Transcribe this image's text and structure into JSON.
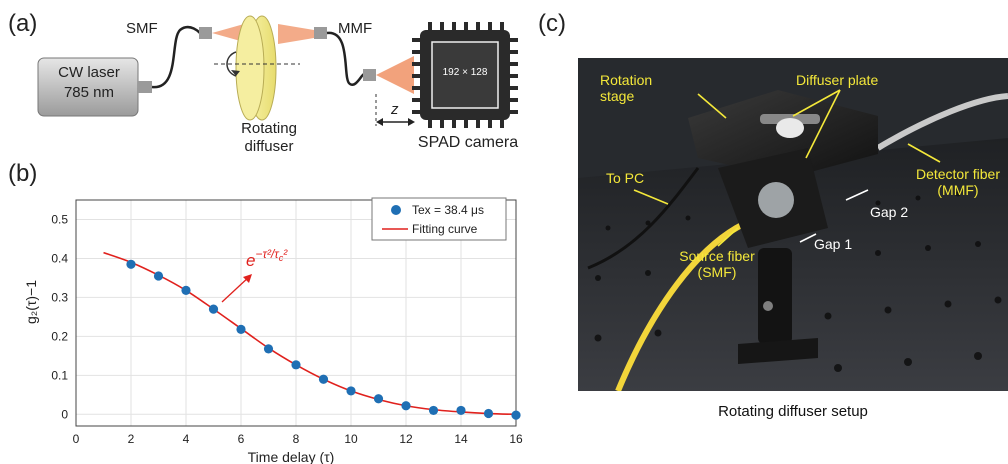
{
  "panel_labels": {
    "a": "(a)",
    "b": "(b)",
    "c": "(c)"
  },
  "schematic": {
    "laser_line1": "CW laser",
    "laser_line2": "785 nm",
    "smf": "SMF",
    "mmf": "MMF",
    "diffuser_line1": "Rotating",
    "diffuser_line2": "diffuser",
    "z_label": "z",
    "sensor_label": "192 × 128",
    "camera_label": "SPAD camera"
  },
  "chart_data": {
    "type": "scatter",
    "xlabel": "Time delay (τ)",
    "ylabel": "g₂(τ)−1",
    "xlim": [
      0,
      16
    ],
    "ylim": [
      -0.03,
      0.55
    ],
    "xticks": [
      0,
      2,
      4,
      6,
      8,
      10,
      12,
      14,
      16
    ],
    "yticks": [
      0,
      0.1,
      0.2,
      0.3,
      0.4,
      0.5
    ],
    "grid": true,
    "legend_position": "top-right",
    "series": [
      {
        "name": "Tex = 38.4 μs",
        "kind": "markers",
        "color": "#1f6fb4",
        "x": [
          2,
          3,
          4,
          5,
          6,
          7,
          8,
          9,
          10,
          11,
          12,
          13,
          14,
          15,
          16
        ],
        "y": [
          0.385,
          0.355,
          0.318,
          0.27,
          0.218,
          0.168,
          0.127,
          0.09,
          0.06,
          0.04,
          0.022,
          0.01,
          0.01,
          0.002,
          -0.002
        ]
      },
      {
        "name": "Fitting curve",
        "kind": "line",
        "color": "#e0211d",
        "x": [
          1,
          2,
          3,
          4,
          5,
          6,
          7,
          8,
          9,
          10,
          11,
          12,
          13,
          14,
          15,
          16
        ],
        "y": [
          0.415,
          0.39,
          0.357,
          0.318,
          0.27,
          0.22,
          0.17,
          0.127,
          0.09,
          0.06,
          0.038,
          0.022,
          0.012,
          0.006,
          0.002,
          0.0
        ]
      }
    ],
    "annotation": "e^{-τ²/τc²}"
  },
  "photo": {
    "caption": "Rotating diffuser setup",
    "labels": {
      "rotation_stage_1": "Rotation",
      "rotation_stage_2": "stage",
      "diffuser_plate": "Diffuser plate",
      "to_pc": "To PC",
      "detector_fiber_1": "Detector fiber",
      "detector_fiber_2": "(MMF)",
      "gap2": "Gap 2",
      "gap1": "Gap 1",
      "source_fiber_1": "Source fiber",
      "source_fiber_2": "(SMF)"
    },
    "colors": {
      "label_yellow": "#f4e83a",
      "label_white": "#ffffff",
      "fiber_yellow": "#f2d53a"
    }
  }
}
